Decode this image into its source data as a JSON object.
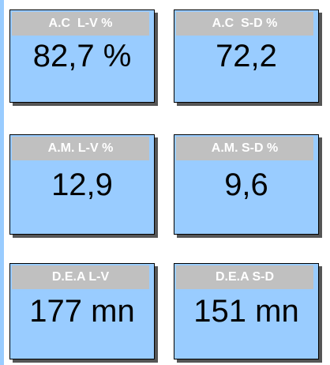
{
  "cards": [
    {
      "label": "A.C  L-V %",
      "value": "82,7 %"
    },
    {
      "label": "A.C  S-D %",
      "value": "72,2"
    },
    {
      "label": "A.M. L-V %",
      "value": "12,9"
    },
    {
      "label": "A.M. S-D %",
      "value": "9,6"
    },
    {
      "label": "D.E.A L-V",
      "value": "177 mn"
    },
    {
      "label": "D.E.A S-D",
      "value": "151 mn"
    }
  ]
}
